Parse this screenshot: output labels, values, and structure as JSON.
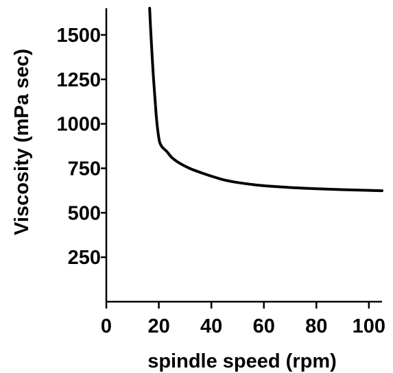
{
  "chart_data": {
    "type": "line",
    "title": "",
    "xlabel": "spindle speed (rpm)",
    "ylabel": "Viscosity (mPa sec)",
    "xlim": [
      0,
      105
    ],
    "ylim": [
      0,
      1650
    ],
    "x_ticks": [
      0,
      20,
      40,
      60,
      80,
      100
    ],
    "y_ticks": [
      250,
      500,
      750,
      1000,
      1250,
      1500
    ],
    "grid": false,
    "legend": "none",
    "series": [
      {
        "color": "#000000",
        "points": [
          [
            16.5,
            1650
          ],
          [
            17,
            1500
          ],
          [
            18,
            1250
          ],
          [
            19,
            1050
          ],
          [
            20,
            920
          ],
          [
            21,
            875
          ],
          [
            23,
            845
          ],
          [
            25,
            810
          ],
          [
            28,
            778
          ],
          [
            32,
            748
          ],
          [
            36,
            726
          ],
          [
            40,
            706
          ],
          [
            45,
            684
          ],
          [
            50,
            670
          ],
          [
            55,
            660
          ],
          [
            60,
            652
          ],
          [
            70,
            642
          ],
          [
            80,
            635
          ],
          [
            90,
            630
          ],
          [
            100,
            626
          ],
          [
            105,
            624
          ]
        ]
      }
    ]
  }
}
